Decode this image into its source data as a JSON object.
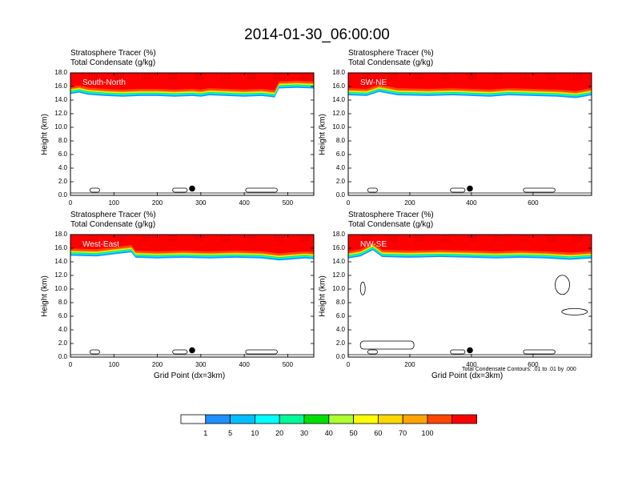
{
  "title": "2014-01-30_06:00:00",
  "chart_data": [
    {
      "type": "heatmap",
      "panel": "South-North",
      "field_labels": [
        "Stratosphere Tracer   (%)",
        "Total Condensate   (g/kg)"
      ],
      "ylabel": "Height (km)",
      "xlabel": "",
      "ylim": [
        0,
        18
      ],
      "y_ticks": [
        "0.0",
        "2.0",
        "4.0",
        "6.0",
        "8.0",
        "10.0",
        "12.0",
        "14.0",
        "16.0",
        "18.0"
      ],
      "xlim": [
        0,
        560
      ],
      "x_ticks": [
        0,
        100,
        200,
        300,
        400,
        500
      ],
      "tropopause_km": [
        [
          0,
          15.6
        ],
        [
          20,
          15.8
        ],
        [
          40,
          15.5
        ],
        [
          80,
          15.3
        ],
        [
          120,
          15.2
        ],
        [
          160,
          15.3
        ],
        [
          200,
          15.3
        ],
        [
          240,
          15.2
        ],
        [
          280,
          15.3
        ],
        [
          300,
          15.2
        ],
        [
          320,
          15.4
        ],
        [
          360,
          15.3
        ],
        [
          400,
          15.2
        ],
        [
          440,
          15.3
        ],
        [
          470,
          15.1
        ],
        [
          480,
          16.4
        ],
        [
          520,
          16.5
        ],
        [
          560,
          16.4
        ]
      ],
      "marker": {
        "x": 280,
        "y": 1.0
      }
    },
    {
      "type": "heatmap",
      "panel": "SW-NE",
      "field_labels": [
        "Stratosphere Tracer   (%)",
        "Total Condensate   (g/kg)"
      ],
      "ylabel": "Height (km)",
      "xlabel": "",
      "ylim": [
        0,
        18
      ],
      "y_ticks": [
        "0.0",
        "2.0",
        "4.0",
        "6.0",
        "8.0",
        "10.0",
        "12.0",
        "14.0",
        "16.0",
        "18.0"
      ],
      "xlim": [
        0,
        790
      ],
      "x_ticks": [
        0,
        200,
        400,
        600
      ],
      "tropopause_km": [
        [
          0,
          15.4
        ],
        [
          60,
          15.3
        ],
        [
          100,
          15.9
        ],
        [
          160,
          15.4
        ],
        [
          260,
          15.3
        ],
        [
          340,
          15.4
        ],
        [
          400,
          15.3
        ],
        [
          460,
          15.2
        ],
        [
          520,
          15.4
        ],
        [
          600,
          15.3
        ],
        [
          680,
          15.2
        ],
        [
          740,
          15.0
        ],
        [
          790,
          15.4
        ]
      ],
      "marker": {
        "x": 395,
        "y": 1.0
      }
    },
    {
      "type": "heatmap",
      "panel": "West-East",
      "field_labels": [
        "Stratosphere Tracer   (%)",
        "Total Condensate   (g/kg)"
      ],
      "ylabel": "Height (km)",
      "xlabel": "Grid Point (dx=3km)",
      "ylim": [
        0,
        18
      ],
      "y_ticks": [
        "0.0",
        "2.0",
        "4.0",
        "6.0",
        "8.0",
        "10.0",
        "12.0",
        "14.0",
        "16.0",
        "18.0"
      ],
      "xlim": [
        0,
        560
      ],
      "x_ticks": [
        0,
        100,
        200,
        300,
        400,
        500
      ],
      "tropopause_km": [
        [
          0,
          15.6
        ],
        [
          60,
          15.5
        ],
        [
          100,
          15.8
        ],
        [
          140,
          16.1
        ],
        [
          150,
          15.3
        ],
        [
          200,
          15.2
        ],
        [
          260,
          15.3
        ],
        [
          320,
          15.2
        ],
        [
          380,
          15.3
        ],
        [
          440,
          15.2
        ],
        [
          480,
          14.9
        ],
        [
          500,
          15.0
        ],
        [
          540,
          15.2
        ],
        [
          560,
          15.1
        ]
      ],
      "marker": {
        "x": 280,
        "y": 1.0
      }
    },
    {
      "type": "heatmap",
      "panel": "NW-SE",
      "field_labels": [
        "Stratosphere Tracer   (%)",
        "Total Condensate   (g/kg)"
      ],
      "ylabel": "Height (km)",
      "xlabel": "Grid Point (dx=3km)",
      "ylim": [
        0,
        18
      ],
      "y_ticks": [
        "0.0",
        "2.0",
        "4.0",
        "6.0",
        "8.0",
        "10.0",
        "12.0",
        "14.0",
        "16.0",
        "18.0"
      ],
      "xlim": [
        0,
        790
      ],
      "x_ticks": [
        0,
        200,
        400,
        600
      ],
      "tropopause_km": [
        [
          0,
          15.2
        ],
        [
          40,
          15.5
        ],
        [
          80,
          16.4
        ],
        [
          110,
          15.4
        ],
        [
          200,
          15.3
        ],
        [
          300,
          15.4
        ],
        [
          400,
          15.3
        ],
        [
          480,
          15.2
        ],
        [
          560,
          15.3
        ],
        [
          640,
          15.2
        ],
        [
          720,
          15.0
        ],
        [
          790,
          15.2
        ]
      ],
      "marker": {
        "x": 395,
        "y": 1.0
      }
    }
  ],
  "contour_note": "Total Condensate Contours: .01 to .01 by .000",
  "colorbar": {
    "labels": [
      "1",
      "5",
      "10",
      "20",
      "30",
      "40",
      "50",
      "60",
      "70",
      "100"
    ],
    "colors": [
      "#ffffff",
      "#1e90ff",
      "#00bfff",
      "#00ffff",
      "#00fa9a",
      "#00e000",
      "#adff2f",
      "#ffff00",
      "#ffd700",
      "#ffa500",
      "#ff4500",
      "#ff0000"
    ]
  }
}
